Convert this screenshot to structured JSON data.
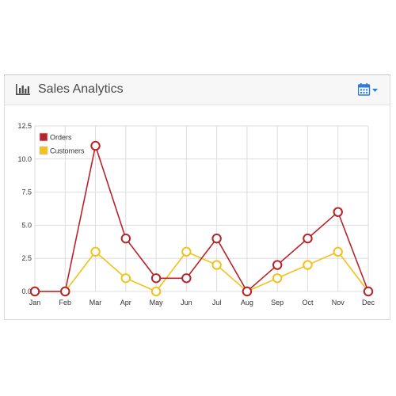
{
  "panel": {
    "title": "Sales Analytics",
    "title_icon": "bar-chart-icon",
    "action_icon": "calendar-icon",
    "action_caret_icon": "caret-down-icon",
    "accent_color": "#2b7cd3"
  },
  "chart_data": {
    "type": "line",
    "categories": [
      "Jan",
      "Feb",
      "Mar",
      "Apr",
      "May",
      "Jun",
      "Jul",
      "Aug",
      "Sep",
      "Oct",
      "Nov",
      "Dec"
    ],
    "series": [
      {
        "name": "Orders",
        "values": [
          0,
          0,
          11,
          4,
          1,
          1,
          4,
          0,
          2,
          4,
          6,
          0
        ],
        "color": "#b8232a"
      },
      {
        "name": "Customers",
        "values": [
          0,
          0,
          3,
          1,
          0,
          3,
          2,
          0,
          1,
          2,
          3,
          0
        ],
        "color": "#f2c21b"
      }
    ],
    "yticks": [
      "0.0",
      "2.5",
      "5.0",
      "7.5",
      "10.0",
      "12.5"
    ],
    "ylim": [
      0,
      12.5
    ],
    "grid": true,
    "legend_position": "top-left"
  }
}
